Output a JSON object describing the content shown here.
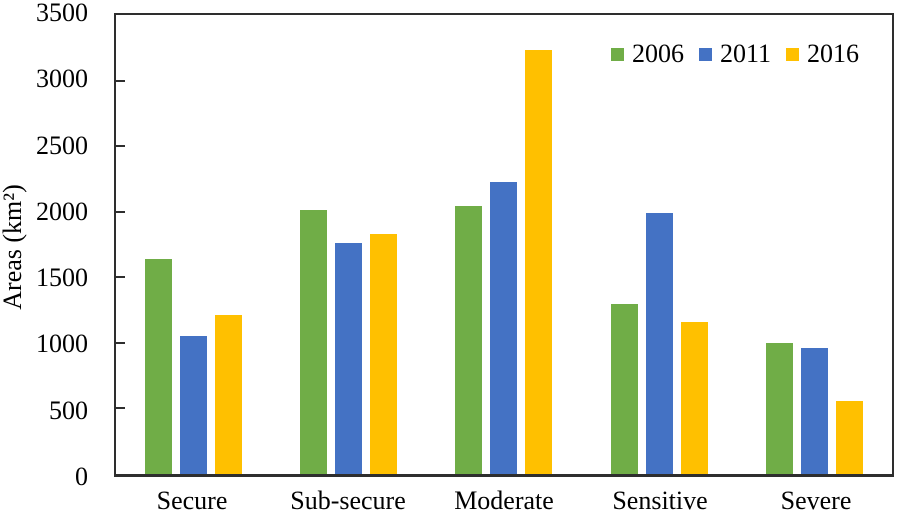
{
  "chart_data": {
    "type": "bar",
    "title": "",
    "xlabel": "",
    "ylabel": "Areas (km²)",
    "ylim": [
      0,
      3500
    ],
    "ytick_step": 500,
    "yticks": [
      3500,
      3000,
      2500,
      2000,
      1500,
      1000,
      500,
      0
    ],
    "categories": [
      "Secure",
      "Sub-secure",
      "Moderate",
      "Sensitive",
      "Severe"
    ],
    "series": [
      {
        "name": "2006",
        "color": "#70AD47",
        "values": [
          1640,
          2010,
          2040,
          1300,
          1000
        ]
      },
      {
        "name": "2011",
        "color": "#4472C4",
        "values": [
          1050,
          1760,
          2230,
          1990,
          960
        ]
      },
      {
        "name": "2016",
        "color": "#FFC000",
        "values": [
          1210,
          1830,
          3230,
          1160,
          560
        ]
      }
    ],
    "legend": {
      "position": "top-right",
      "entries": [
        "2006",
        "2011",
        "2016"
      ]
    },
    "grid": false,
    "axis_color": "#2e2e2e",
    "background_color": "#ffffff"
  }
}
